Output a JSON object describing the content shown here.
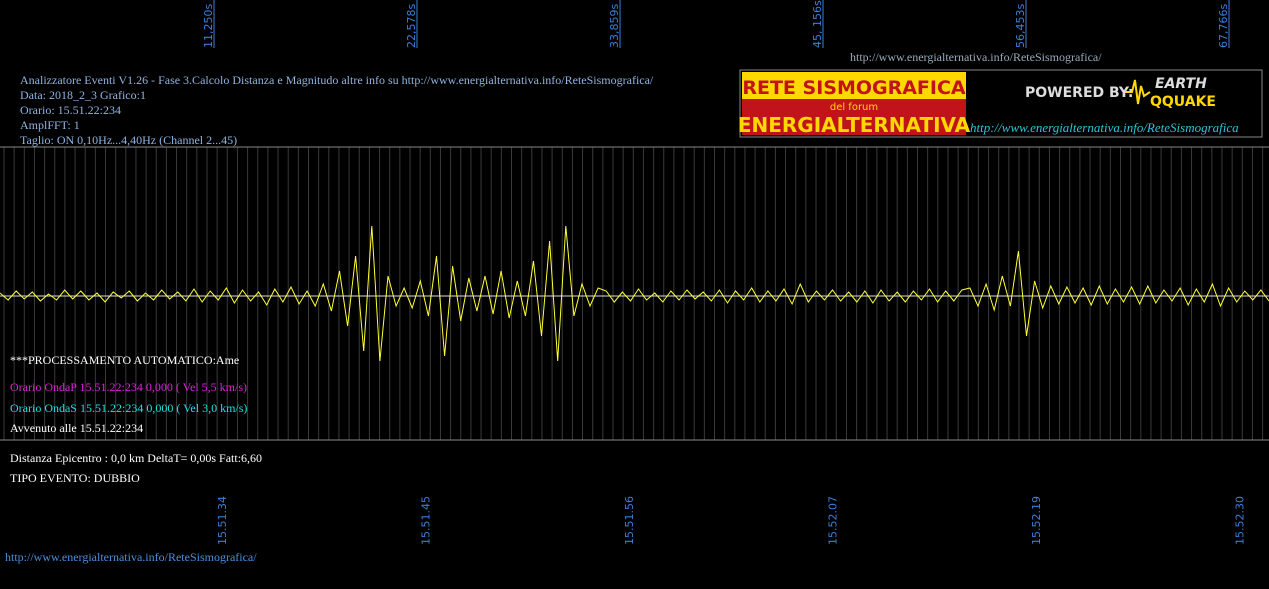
{
  "top_ticks": [
    "11,250s",
    "22,578s",
    "33,859s",
    "45, 156s",
    "56,453s",
    "67,766s"
  ],
  "url_top": "http://www.energialternativa.info/ReteSismografica/",
  "header": [
    "Analizzatore Eventi V1.26 - Fase 3.Calcolo Distanza e Magnitudo altre info su http://www.energialternativa.info/ReteSismografica/",
    "Data: 2018_2_3 Grafico:1",
    "Orario: 15.51.22:234",
    "AmplFFT: 1",
    "Taglio: ON 0,10Hz...4,40Hz      (Channel 2...45)"
  ],
  "logo": {
    "line1": "RETE SISMOGRAFICA",
    "line2": "del forum",
    "line3": "ENERGIALTERNATIVA",
    "powered": "POWERED BY:",
    "brand1": "EARTH",
    "brand2": "QQUAKE",
    "url": "http://www.energialternativa.info/ReteSismografica"
  },
  "processing": {
    "title": "***PROCESSAMENTO AUTOMATICO:Ame",
    "onda_p": "Orario OndaP 15.51.22:234  0,000 ( Vel 5,5 km/s)",
    "onda_s": "Orario OndaS 15.51.22:234  0,000 ( Vel 3,0 km/s)",
    "avvenuto": "Avvenuto alle 15.51.22:234",
    "distanza": "Distanza Epicentro : 0,0 km DeltaT= 0,00s  Fatt:6,60",
    "tipo": "TIPO EVENTO: DUBBIO"
  },
  "bottom_ticks": [
    "15.51.34",
    "15.51.45",
    "15.51.56",
    "15.52.07",
    "15.52.19",
    "15.52.30"
  ],
  "url_bottom": "http://www.energialternativa.info/ReteSismografica/",
  "trace": [
    3,
    -4,
    5,
    -3,
    4,
    -5,
    2,
    -4,
    6,
    -3,
    5,
    -4,
    3,
    -6,
    4,
    -2,
    5,
    -5,
    3,
    -4,
    6,
    -3,
    4,
    -5,
    7,
    -6,
    5,
    -4,
    8,
    -7,
    6,
    -5,
    4,
    -9,
    7,
    -6,
    9,
    -8,
    5,
    -10,
    12,
    -15,
    25,
    -30,
    40,
    -55,
    70,
    -65,
    20,
    -10,
    8,
    -12,
    15,
    -20,
    40,
    -60,
    30,
    -25,
    18,
    -15,
    20,
    -18,
    25,
    -22,
    15,
    -20,
    35,
    -40,
    55,
    -65,
    70,
    -20,
    12,
    -10,
    8,
    5,
    -6,
    4,
    -5,
    7,
    -4,
    3,
    -6,
    5,
    -4,
    6,
    -3,
    4,
    -5,
    6,
    -7,
    5,
    -4,
    8,
    -6,
    5,
    -5,
    7,
    -8,
    12,
    -6,
    5,
    -4,
    6,
    -5,
    4,
    -6,
    5,
    -7,
    6,
    -5,
    4,
    -6,
    5,
    -4,
    7,
    -6,
    5,
    -5,
    6,
    8,
    -10,
    12,
    -14,
    20,
    -10,
    45,
    -40,
    15,
    -12,
    10,
    -8,
    9,
    -7,
    8,
    -9,
    10,
    -8,
    7,
    -6,
    9,
    -8,
    10,
    -7,
    6,
    -5,
    8,
    -9,
    7,
    -6,
    12,
    -10,
    8,
    -6,
    5,
    -4,
    6,
    -5
  ]
}
